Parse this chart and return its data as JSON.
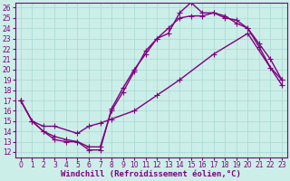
{
  "xlabel": "Windchill (Refroidissement éolien,°C)",
  "bg_color": "#cceee8",
  "line_color": "#800080",
  "xlim": [
    -0.5,
    23.5
  ],
  "ylim": [
    11.5,
    26.5
  ],
  "yticks": [
    12,
    13,
    14,
    15,
    16,
    17,
    18,
    19,
    20,
    21,
    22,
    23,
    24,
    25,
    26
  ],
  "xticks": [
    0,
    1,
    2,
    3,
    4,
    5,
    6,
    7,
    8,
    9,
    10,
    11,
    12,
    13,
    14,
    15,
    16,
    17,
    18,
    19,
    20,
    21,
    22,
    23
  ],
  "line1_x": [
    0,
    1,
    2,
    3,
    4,
    5,
    6,
    7,
    8,
    9,
    10,
    11,
    12,
    13,
    14,
    15,
    16,
    17,
    18,
    19,
    20,
    21,
    22,
    23
  ],
  "line1_y": [
    17.0,
    15.0,
    14.0,
    13.2,
    13.0,
    13.0,
    12.2,
    12.2,
    16.2,
    18.2,
    20.0,
    21.5,
    23.0,
    23.5,
    25.5,
    26.5,
    25.5,
    25.5,
    25.0,
    24.8,
    24.0,
    22.2,
    20.2,
    19.0
  ],
  "line2_x": [
    0,
    1,
    2,
    3,
    4,
    5,
    6,
    7,
    8,
    9,
    10,
    11,
    12,
    13,
    14,
    15,
    16,
    17,
    18,
    19,
    20,
    21,
    22,
    23
  ],
  "line2_y": [
    17.0,
    15.0,
    14.0,
    13.5,
    13.2,
    13.0,
    12.5,
    12.5,
    16.0,
    17.8,
    19.8,
    21.8,
    23.0,
    24.0,
    25.0,
    25.2,
    25.2,
    25.5,
    25.2,
    24.5,
    24.0,
    22.5,
    21.0,
    19.0
  ],
  "line3_x": [
    0,
    1,
    2,
    3,
    5,
    6,
    7,
    8,
    10,
    12,
    14,
    17,
    20,
    23
  ],
  "line3_y": [
    17.0,
    15.0,
    14.5,
    14.5,
    13.8,
    14.5,
    14.8,
    15.2,
    16.0,
    17.5,
    19.0,
    21.5,
    23.5,
    18.5
  ],
  "marker": "+",
  "markersize": 4,
  "linewidth": 1.0,
  "grid_color": "#a8d8d0",
  "xlabel_fontsize": 6.5,
  "tick_fontsize": 5.5
}
